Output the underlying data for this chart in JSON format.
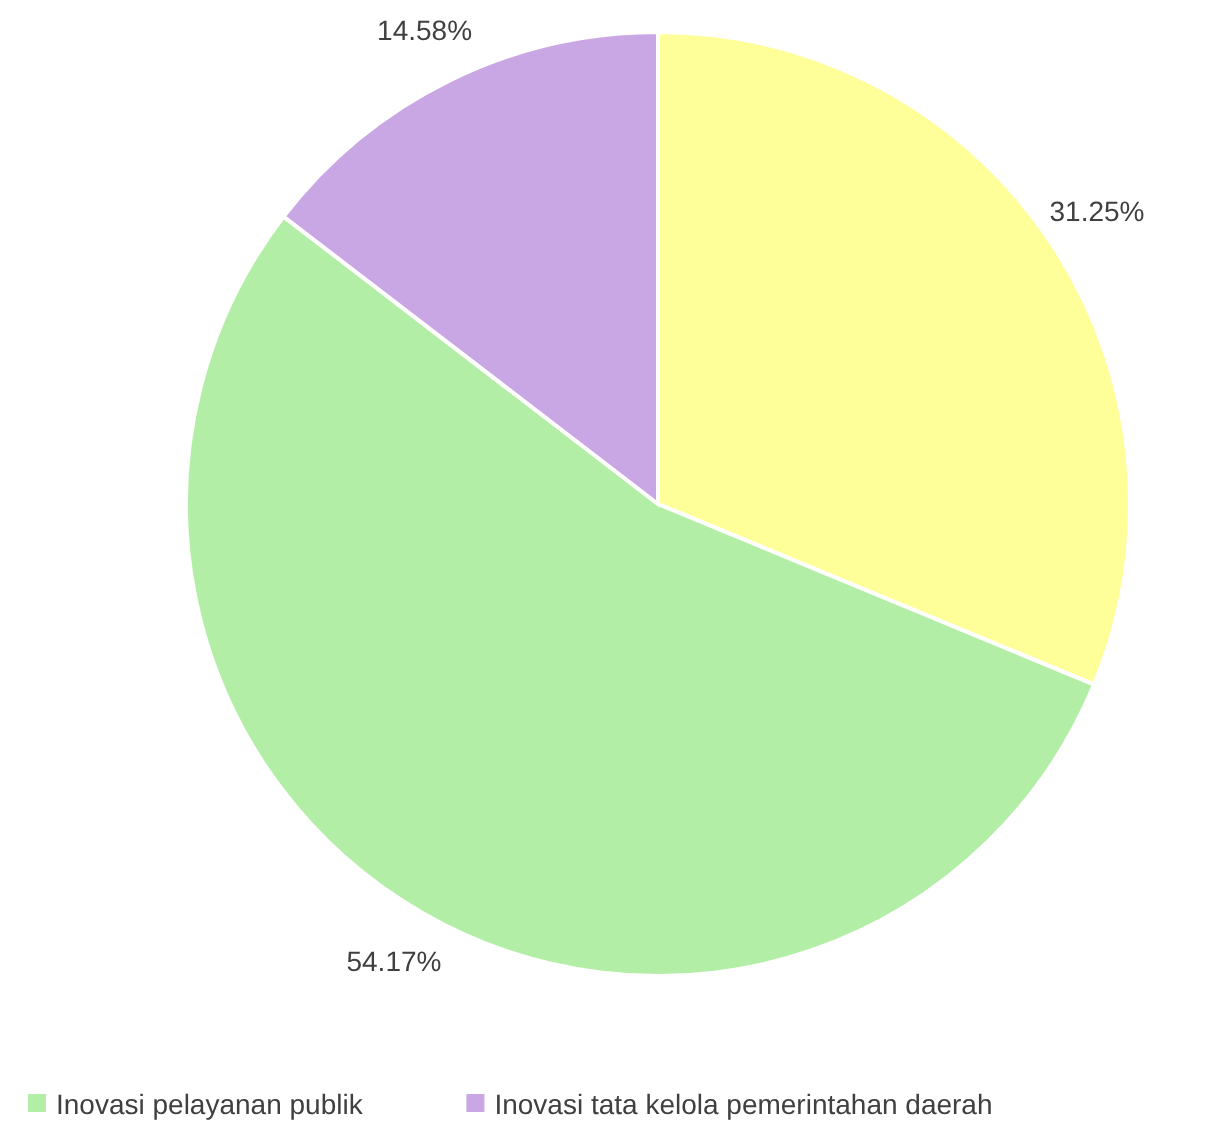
{
  "chart_data": {
    "type": "pie",
    "categories": [
      null,
      "Inovasi pelayanan publik",
      "Inovasi tata kelola pemerintahan daerah"
    ],
    "values": [
      31.25,
      54.17,
      14.58
    ],
    "colors": [
      "#ffff99",
      "#b3eea6",
      "#c9a6e4"
    ],
    "value_labels": [
      "31.25%",
      "54.17%",
      "14.58%"
    ],
    "legend": "bottom"
  }
}
